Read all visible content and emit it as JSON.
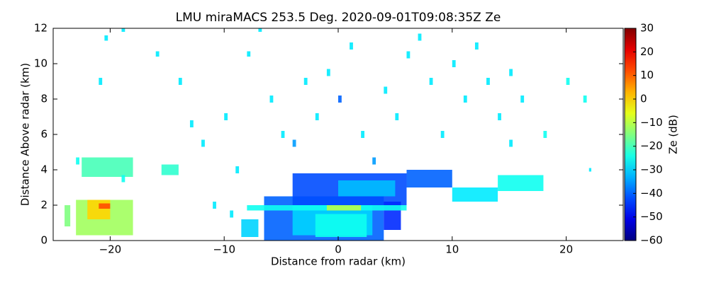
{
  "chart_data": {
    "type": "radar-rhi",
    "title": "LMU miraMACS 253.5 Deg. 2020-09-01T09:08:35Z  Ze",
    "x_label": "Distance from radar (km)",
    "y_label": "Distance Above radar  (km)",
    "colorbar_label": "Ze (dB)",
    "xlim": [
      -25,
      25
    ],
    "ylim": [
      0,
      12
    ],
    "clim": [
      -60,
      30
    ],
    "colormap": "jet",
    "xticks": [
      {
        "value": -20,
        "label": "−20"
      },
      {
        "value": -10,
        "label": "−10"
      },
      0,
      10,
      20
    ],
    "yticks": [
      0,
      2,
      4,
      6,
      8,
      10,
      12
    ],
    "cticks": [
      {
        "value": -60,
        "label": "−60"
      },
      {
        "value": -50,
        "label": "−50"
      },
      {
        "value": -40,
        "label": "−40"
      },
      {
        "value": -30,
        "label": "−30"
      },
      {
        "value": -20,
        "label": "−20"
      },
      {
        "value": -10,
        "label": "−10"
      },
      0,
      10,
      20,
      30
    ],
    "cells": [
      {
        "x0": -6.5,
        "x1": 4,
        "y0": 0,
        "y1": 2.5,
        "ze": -40
      },
      {
        "x0": -4,
        "x1": 3,
        "y0": 0.3,
        "y1": 2,
        "ze": -30
      },
      {
        "x0": -2,
        "x1": 2.5,
        "y0": 0.2,
        "y1": 1.5,
        "ze": -25
      },
      {
        "x0": -4,
        "x1": 6,
        "y0": 2,
        "y1": 3.8,
        "ze": -42
      },
      {
        "x0": 0,
        "x1": 5,
        "y0": 2.5,
        "y1": 3.4,
        "ze": -32
      },
      {
        "x0": 4,
        "x1": 5.5,
        "y0": 0.6,
        "y1": 2.2,
        "ze": -45
      },
      {
        "x0": -8,
        "x1": 6,
        "y0": 1.7,
        "y1": 2,
        "ze": -25
      },
      {
        "x0": -1,
        "x1": 2,
        "y0": 1.7,
        "y1": 2,
        "ze": -10
      },
      {
        "x0": 6,
        "x1": 10,
        "y0": 3,
        "y1": 4,
        "ze": -40
      },
      {
        "x0": 10,
        "x1": 14,
        "y0": 2.2,
        "y1": 3,
        "ze": -28
      },
      {
        "x0": 14,
        "x1": 18,
        "y0": 2.8,
        "y1": 3.7,
        "ze": -25
      },
      {
        "x0": -8.5,
        "x1": -7,
        "y0": 0.2,
        "y1": 1.2,
        "ze": -30
      },
      {
        "x0": -23,
        "x1": -18,
        "y0": 0.3,
        "y1": 2.3,
        "ze": -12
      },
      {
        "x0": -22,
        "x1": -20,
        "y0": 1.2,
        "y1": 2.3,
        "ze": 0
      },
      {
        "x0": -21,
        "x1": -20,
        "y0": 1.8,
        "y1": 2.1,
        "ze": 12
      },
      {
        "x0": -24,
        "x1": -23.5,
        "y0": 0.8,
        "y1": 2,
        "ze": -15
      },
      {
        "x0": -22.5,
        "x1": -18,
        "y0": 3.6,
        "y1": 4.7,
        "ze": -20
      },
      {
        "x0": -15.5,
        "x1": -14,
        "y0": 3.7,
        "y1": 4.3,
        "ze": -22
      },
      {
        "x0": -20.5,
        "x1": -20.2,
        "y0": 11.3,
        "y1": 11.6,
        "ze": -28
      },
      {
        "x0": -19,
        "x1": -18.7,
        "y0": 11.8,
        "y1": 12,
        "ze": -28
      },
      {
        "x0": -16,
        "x1": -15.7,
        "y0": 10.4,
        "y1": 10.7,
        "ze": -28
      },
      {
        "x0": -13,
        "x1": -12.7,
        "y0": 6.4,
        "y1": 6.8,
        "ze": -28
      },
      {
        "x0": -12,
        "x1": -11.7,
        "y0": 5.3,
        "y1": 5.7,
        "ze": -28
      },
      {
        "x0": -10,
        "x1": -9.7,
        "y0": 6.8,
        "y1": 7.2,
        "ze": -28
      },
      {
        "x0": -9,
        "x1": -8.7,
        "y0": 3.8,
        "y1": 4.2,
        "ze": -28
      },
      {
        "x0": -8,
        "x1": -7.7,
        "y0": 10.4,
        "y1": 10.7,
        "ze": -28
      },
      {
        "x0": -6,
        "x1": -5.7,
        "y0": 7.8,
        "y1": 8.2,
        "ze": -28
      },
      {
        "x0": -5,
        "x1": -4.7,
        "y0": 5.8,
        "y1": 6.2,
        "ze": -28
      },
      {
        "x0": -4,
        "x1": -3.7,
        "y0": 5.3,
        "y1": 5.7,
        "ze": -35
      },
      {
        "x0": -3,
        "x1": -2.7,
        "y0": 8.8,
        "y1": 9.2,
        "ze": -28
      },
      {
        "x0": -2,
        "x1": -1.7,
        "y0": 6.8,
        "y1": 7.2,
        "ze": -28
      },
      {
        "x0": -1,
        "x1": -0.7,
        "y0": 9.3,
        "y1": 9.7,
        "ze": -28
      },
      {
        "x0": 0,
        "x1": 0.3,
        "y0": 7.8,
        "y1": 8.2,
        "ze": -40
      },
      {
        "x0": 1,
        "x1": 1.3,
        "y0": 10.8,
        "y1": 11.2,
        "ze": -28
      },
      {
        "x0": 2,
        "x1": 2.3,
        "y0": 5.8,
        "y1": 6.2,
        "ze": -28
      },
      {
        "x0": 3,
        "x1": 3.3,
        "y0": 4.3,
        "y1": 4.7,
        "ze": -35
      },
      {
        "x0": 4,
        "x1": 4.3,
        "y0": 8.3,
        "y1": 8.7,
        "ze": -28
      },
      {
        "x0": 5,
        "x1": 5.3,
        "y0": 6.8,
        "y1": 7.2,
        "ze": -28
      },
      {
        "x0": 6,
        "x1": 6.3,
        "y0": 10.3,
        "y1": 10.7,
        "ze": -28
      },
      {
        "x0": 7,
        "x1": 7.3,
        "y0": 11.3,
        "y1": 11.7,
        "ze": -28
      },
      {
        "x0": 8,
        "x1": 8.3,
        "y0": 8.8,
        "y1": 9.2,
        "ze": -28
      },
      {
        "x0": 9,
        "x1": 9.3,
        "y0": 5.8,
        "y1": 6.2,
        "ze": -28
      },
      {
        "x0": 10,
        "x1": 10.3,
        "y0": 9.8,
        "y1": 10.2,
        "ze": -28
      },
      {
        "x0": 11,
        "x1": 11.3,
        "y0": 7.8,
        "y1": 8.2,
        "ze": -28
      },
      {
        "x0": 12,
        "x1": 12.3,
        "y0": 10.8,
        "y1": 11.2,
        "ze": -28
      },
      {
        "x0": 13,
        "x1": 13.3,
        "y0": 8.8,
        "y1": 9.2,
        "ze": -28
      },
      {
        "x0": 14,
        "x1": 14.3,
        "y0": 6.8,
        "y1": 7.2,
        "ze": -28
      },
      {
        "x0": 15,
        "x1": 15.3,
        "y0": 5.3,
        "y1": 5.7,
        "ze": -28
      },
      {
        "x0": 16,
        "x1": 16.3,
        "y0": 7.8,
        "y1": 8.2,
        "ze": -28
      },
      {
        "x0": 18,
        "x1": 18.3,
        "y0": 5.8,
        "y1": 6.2,
        "ze": -25
      },
      {
        "x0": 20,
        "x1": 20.3,
        "y0": 8.8,
        "y1": 9.2,
        "ze": -25
      },
      {
        "x0": 22,
        "x1": 22.2,
        "y0": 3.9,
        "y1": 4.1,
        "ze": -28
      },
      {
        "x0": -21,
        "x1": -20.7,
        "y0": 8.8,
        "y1": 9.2,
        "ze": -28
      },
      {
        "x0": -23,
        "x1": -22.7,
        "y0": 4.3,
        "y1": 4.7,
        "ze": -25
      },
      {
        "x0": -19,
        "x1": -18.7,
        "y0": 3.3,
        "y1": 3.7,
        "ze": -25
      },
      {
        "x0": -14,
        "x1": -13.7,
        "y0": 8.8,
        "y1": 9.2,
        "ze": -28
      },
      {
        "x0": -11,
        "x1": -10.7,
        "y0": 1.8,
        "y1": 2.2,
        "ze": -28
      },
      {
        "x0": -9.5,
        "x1": -9.2,
        "y0": 1.3,
        "y1": 1.7,
        "ze": -28
      },
      {
        "x0": -7,
        "x1": -6.7,
        "y0": 11.8,
        "y1": 12,
        "ze": -28
      },
      {
        "x0": 15,
        "x1": 15.3,
        "y0": 9.3,
        "y1": 9.7,
        "ze": -28
      },
      {
        "x0": 21.5,
        "x1": 21.8,
        "y0": 7.8,
        "y1": 8.2,
        "ze": -25
      }
    ]
  }
}
